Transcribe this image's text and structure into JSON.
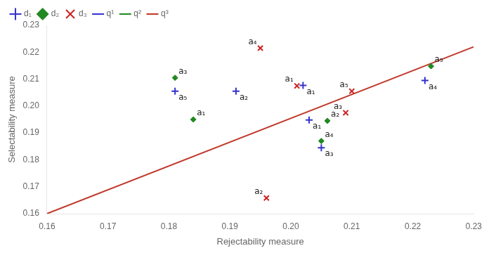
{
  "chart_data": {
    "type": "scatter",
    "xlabel": "Rejectability measure",
    "ylabel": "Selectability measure",
    "xlim": [
      0.16,
      0.23
    ],
    "ylim": [
      0.16,
      0.23
    ],
    "xticks": [
      0.16,
      0.17,
      0.18,
      0.19,
      {
        "value": 0.2,
        "label": "0.20"
      },
      0.21,
      0.22,
      0.23
    ],
    "yticks": [
      0.16,
      0.17,
      0.18,
      0.19,
      {
        "value": 0.2,
        "label": "0.20"
      },
      0.21,
      0.22,
      0.23
    ],
    "grid": false,
    "legend": "upper left",
    "series": [
      {
        "name": "d₁",
        "color": "#3333cc",
        "marker": "plus",
        "x": [
          0.181,
          0.191,
          0.202,
          0.203,
          0.205,
          0.222
        ],
        "y": [
          0.2055,
          0.2055,
          0.2077,
          0.1948,
          0.1845,
          0.2095
        ],
        "labels": [
          "a₅",
          "a₂",
          "a₁",
          "a₁",
          "a₃",
          "a₄"
        ]
      },
      {
        "name": "d₂",
        "color": "#228822",
        "marker": "diamond",
        "x": [
          0.181,
          0.184,
          0.206,
          0.205,
          0.223
        ],
        "y": [
          0.2105,
          0.195,
          0.1945,
          0.187,
          0.2148
        ],
        "labels": [
          "a₃",
          "a₁",
          "a₂",
          "a₄",
          "a₅"
        ]
      },
      {
        "name": "d₃",
        "color": "#cc2222",
        "marker": "x",
        "x": [
          0.195,
          0.196,
          0.201,
          0.209,
          0.21
        ],
        "y": [
          0.2215,
          0.1658,
          0.2075,
          0.1975,
          0.2055
        ],
        "labels": [
          "a₄",
          "a₂",
          "a₁",
          "a₃",
          "a₅"
        ]
      },
      {
        "name": "q¹",
        "color": "#3333cc",
        "type": "line",
        "x": [],
        "y": []
      },
      {
        "name": "q²",
        "color": "#228822",
        "type": "line",
        "x": [],
        "y": []
      },
      {
        "name": "q³",
        "color": "#c0392b",
        "type": "line",
        "x": [
          0.16,
          0.23
        ],
        "y": [
          0.16,
          0.222
        ]
      }
    ]
  }
}
